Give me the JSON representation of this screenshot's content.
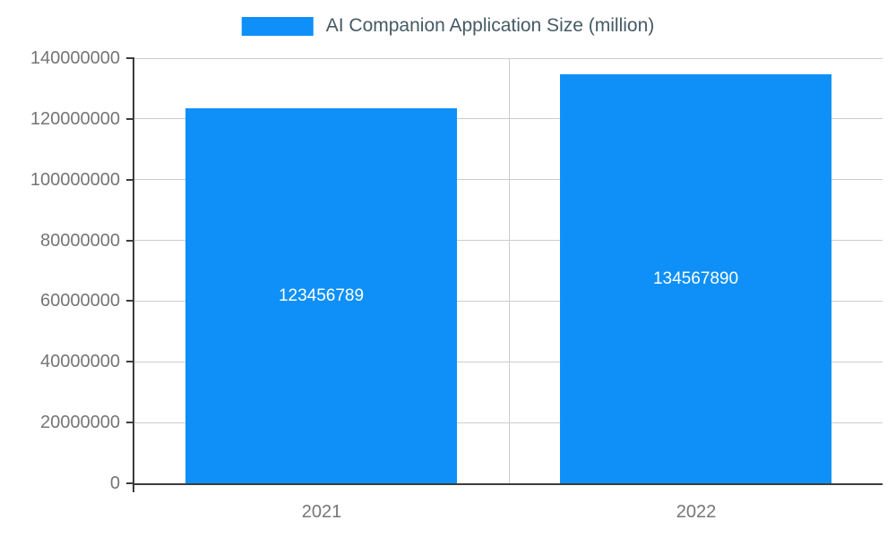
{
  "chart_data": {
    "type": "bar",
    "title": "AI Companion Application Size (million)",
    "categories": [
      "2021",
      "2022"
    ],
    "series": [
      {
        "name": "AI Companion Application Size (million)",
        "values": [
          123456789,
          134567890
        ]
      }
    ],
    "data_labels": [
      "123456789",
      "134567890"
    ],
    "xlabel": "",
    "ylabel": "",
    "ylim": [
      0,
      140000000
    ],
    "y_ticks": [
      0,
      20000000,
      40000000,
      60000000,
      80000000,
      100000000,
      120000000,
      140000000
    ],
    "y_tick_labels": [
      "0",
      "20000000",
      "40000000",
      "60000000",
      "80000000",
      "100000000",
      "120000000",
      "140000000"
    ],
    "grid": true,
    "legend_position": "top-center",
    "colors": {
      "bar": "#0e90f8",
      "tick_label": "#757575",
      "title": "#455a64",
      "grid": "#cccccc",
      "axis": "#3c3c3c",
      "data_label": "#ffffff",
      "background": "#ffffff"
    }
  }
}
